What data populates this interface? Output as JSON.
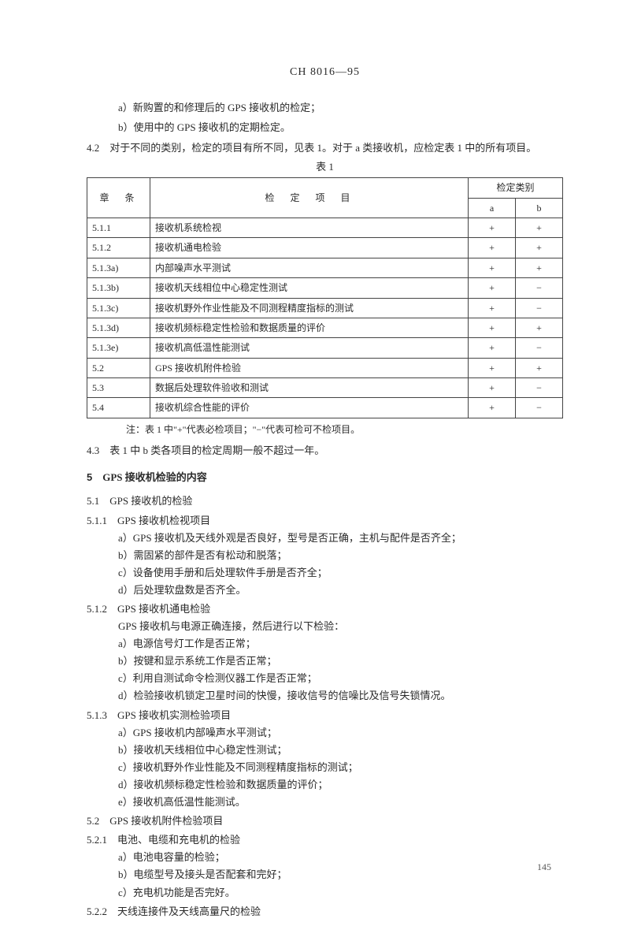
{
  "header": "CH 8016—95",
  "list_a": [
    "a）新购置的和修理后的 GPS 接收机的检定；",
    "b）使用中的 GPS 接收机的定期检定。"
  ],
  "para_42_num": "4.2",
  "para_42_text": "　对于不同的类别，检定的项目有所不同，见表 1。对于 a 类接收机，应检定表 1 中的所有项目。",
  "table_caption": "表 1",
  "table": {
    "head_zhang": "章　条",
    "head_xiangmu": "检　定　项　目",
    "head_leibie": "检定类别",
    "head_a": "a",
    "head_b": "b",
    "rows": [
      {
        "z": "5.1.1",
        "x": "接收机系统检视",
        "a": "+",
        "b": "+"
      },
      {
        "z": "5.1.2",
        "x": "接收机通电检验",
        "a": "+",
        "b": "+"
      },
      {
        "z": "5.1.3a)",
        "x": "内部噪声水平测试",
        "a": "+",
        "b": "+"
      },
      {
        "z": "5.1.3b)",
        "x": "接收机天线相位中心稳定性测试",
        "a": "+",
        "b": "−"
      },
      {
        "z": "5.1.3c)",
        "x": "接收机野外作业性能及不同测程精度指标的测试",
        "a": "+",
        "b": "−"
      },
      {
        "z": "5.1.3d)",
        "x": "接收机频标稳定性检验和数据质量的评价",
        "a": "+",
        "b": "+"
      },
      {
        "z": "5.1.3e)",
        "x": "接收机高低温性能测试",
        "a": "+",
        "b": "−"
      },
      {
        "z": "5.2",
        "x": "GPS 接收机附件检验",
        "a": "+",
        "b": "+"
      },
      {
        "z": "5.3",
        "x": "数据后处理软件验收和测试",
        "a": "+",
        "b": "−"
      },
      {
        "z": "5.4",
        "x": "接收机综合性能的评价",
        "a": "+",
        "b": "−"
      }
    ]
  },
  "table_note": "注：表 1 中\"+\"代表必检项目；\"−\"代表可检可不检项目。",
  "para_43_num": "4.3",
  "para_43_text": "　表 1 中 b 类各项目的检定周期一般不超过一年。",
  "sec5_num": "5",
  "sec5_title": "GPS 接收机检验的内容",
  "s51_num": "5.1",
  "s51_text": "　GPS 接收机的检验",
  "s511_num": "5.1.1",
  "s511_text": "　GPS 接收机检视项目",
  "s511_items": [
    "a）GPS 接收机及天线外观是否良好，型号是否正确，主机与配件是否齐全；",
    "b）需固紧的部件是否有松动和脱落；",
    "c）设备使用手册和后处理软件手册是否齐全；",
    "d）后处理软盘数是否齐全。"
  ],
  "s512_num": "5.1.2",
  "s512_text": "　GPS 接收机通电检验",
  "s512_leadin": "GPS 接收机与电源正确连接，然后进行以下检验：",
  "s512_items": [
    "a）电源信号灯工作是否正常；",
    "b）按键和显示系统工作是否正常；",
    "c）利用自测试命令检测仪器工作是否正常；",
    "d）检验接收机锁定卫星时间的快慢，接收信号的信噪比及信号失锁情况。"
  ],
  "s513_num": "5.1.3",
  "s513_text": "　GPS 接收机实测检验项目",
  "s513_items": [
    "a）GPS 接收机内部噪声水平测试；",
    "b）接收机天线相位中心稳定性测试；",
    "c）接收机野外作业性能及不同测程精度指标的测试；",
    "d）接收机频标稳定性检验和数据质量的评价；",
    "e）接收机高低温性能测试。"
  ],
  "s52_num": "5.2",
  "s52_text": "　GPS 接收机附件检验项目",
  "s521_num": "5.2.1",
  "s521_text": "　电池、电缆和充电机的检验",
  "s521_items": [
    "a）电池电容量的检验；",
    "b）电缆型号及接头是否配套和完好；",
    "c）充电机功能是否完好。"
  ],
  "s522_num": "5.2.2",
  "s522_text": "　天线连接件及天线高量尺的检验",
  "page_number": "145"
}
